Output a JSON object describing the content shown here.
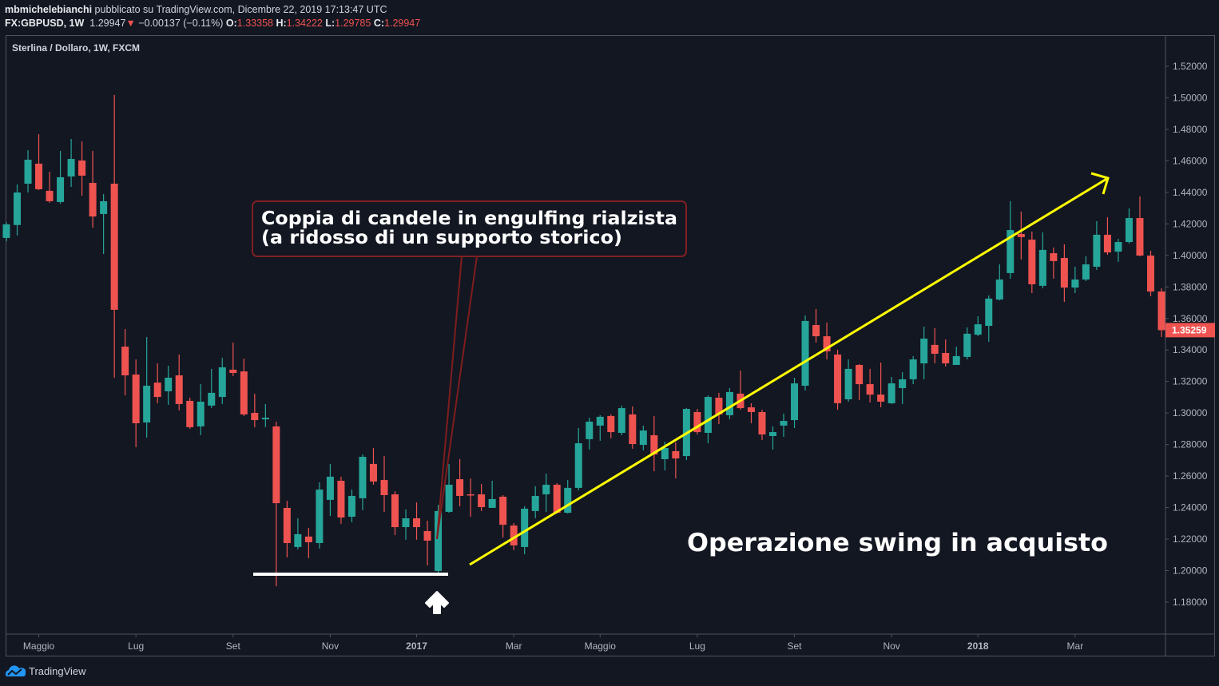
{
  "header": {
    "author": "mbmichelebianchi",
    "published_text": "pubblicato su TradingView.com, Dicembre 22, 2019 17:13:47 UTC",
    "symbol": "FX:GBPUSD, 1W",
    "last": "1.29947",
    "change_arrow": "▼",
    "change": "−0.00137 (−0.11%)",
    "open_label": "O:",
    "open": "1.33358",
    "high_label": "H:",
    "high": "1.34222",
    "low_label": "L:",
    "low": "1.29785",
    "close_label": "C:",
    "close": "1.29947"
  },
  "colors": {
    "background": "#131722",
    "up": "#26a69a",
    "down": "#ef5350",
    "trendline": "#ffff00",
    "callout_border": "#801f22"
  },
  "annotations": {
    "callout_line1": "Coppia di candele in engulfing rialzista",
    "callout_line2": "(a ridosso di un supporto storico)",
    "trade_label": "Operazione swing in acquisto"
  },
  "footer": {
    "brand": "TradingView",
    "logo_icon": "tradingview-cloud-icon"
  },
  "chart_data": {
    "type": "candlestick",
    "title": "Sterlina / Dollaro, 1W, FXCM",
    "ylim": [
      1.17,
      1.535
    ],
    "y_ticks": [
      "1.52000",
      "1.50000",
      "1.48000",
      "1.46000",
      "1.44000",
      "1.42000",
      "1.40000",
      "1.38000",
      "1.36000",
      "1.34000",
      "1.32000",
      "1.30000",
      "1.28000",
      "1.26000",
      "1.24000",
      "1.22000",
      "1.20000",
      "1.18000"
    ],
    "last_price_label": "1.35259",
    "x_ticks": [
      {
        "label": "Maggio",
        "candle": 3,
        "bold": false
      },
      {
        "label": "Lug",
        "candle": 12,
        "bold": false
      },
      {
        "label": "Set",
        "candle": 21,
        "bold": false
      },
      {
        "label": "Nov",
        "candle": 30,
        "bold": false
      },
      {
        "label": "2017",
        "candle": 38,
        "bold": true
      },
      {
        "label": "Mar",
        "candle": 47,
        "bold": false
      },
      {
        "label": "Maggio",
        "candle": 55,
        "bold": false
      },
      {
        "label": "Lug",
        "candle": 64,
        "bold": false
      },
      {
        "label": "Set",
        "candle": 73,
        "bold": false
      },
      {
        "label": "Nov",
        "candle": 82,
        "bold": false
      },
      {
        "label": "2018",
        "candle": 90,
        "bold": true
      },
      {
        "label": "Mar",
        "candle": 99,
        "bold": false
      }
    ],
    "support_level": 1.1977,
    "ohlc": [
      [
        1.4111,
        1.421,
        1.409,
        1.4197
      ],
      [
        1.4193,
        1.445,
        1.4126,
        1.4399
      ],
      [
        1.4455,
        1.4668,
        1.4399,
        1.4607
      ],
      [
        1.4582,
        1.4769,
        1.4415,
        1.442
      ],
      [
        1.441,
        1.4531,
        1.4334,
        1.4344
      ],
      [
        1.4339,
        1.4663,
        1.4328,
        1.4496
      ],
      [
        1.4501,
        1.4739,
        1.4435,
        1.4612
      ],
      [
        1.4602,
        1.4724,
        1.4379,
        1.4506
      ],
      [
        1.446,
        1.4663,
        1.4176,
        1.4247
      ],
      [
        1.4263,
        1.4389,
        1.4009,
        1.4344
      ],
      [
        1.4455,
        1.5018,
        1.3224,
        1.3655
      ],
      [
        1.3421,
        1.3533,
        1.3112,
        1.3239
      ],
      [
        1.3244,
        1.334,
        1.2783,
        1.2935
      ],
      [
        1.294,
        1.3482,
        1.2844,
        1.3173
      ],
      [
        1.3193,
        1.3315,
        1.3062,
        1.3102
      ],
      [
        1.3138,
        1.33,
        1.3052,
        1.3224
      ],
      [
        1.3239,
        1.3371,
        1.3016,
        1.3057
      ],
      [
        1.3077,
        1.3097,
        1.29,
        1.291
      ],
      [
        1.2915,
        1.3183,
        1.2859,
        1.3072
      ],
      [
        1.3047,
        1.328,
        1.3031,
        1.3128
      ],
      [
        1.3102,
        1.335,
        1.3057,
        1.329
      ],
      [
        1.3275,
        1.3447,
        1.3234,
        1.3254
      ],
      [
        1.3264,
        1.3345,
        1.298,
        1.2991
      ],
      [
        1.3001,
        1.3122,
        1.291,
        1.2955
      ],
      [
        1.296,
        1.3057,
        1.291,
        1.297
      ],
      [
        1.2915,
        1.2945,
        1.1901,
        1.2428
      ],
      [
        1.2398,
        1.2443,
        1.2084,
        1.2175
      ],
      [
        1.215,
        1.2332,
        1.2135,
        1.2231
      ],
      [
        1.2216,
        1.2271,
        1.2079,
        1.218
      ],
      [
        1.2175,
        1.256,
        1.214,
        1.2514
      ],
      [
        1.2449,
        1.2677,
        1.2347,
        1.2596
      ],
      [
        1.257,
        1.2596,
        1.2297,
        1.2337
      ],
      [
        1.2342,
        1.2514,
        1.2307,
        1.2474
      ],
      [
        1.2459,
        1.2737,
        1.2383,
        1.2722
      ],
      [
        1.2677,
        1.2778,
        1.2545,
        1.2565
      ],
      [
        1.2575,
        1.2727,
        1.2373,
        1.2479
      ],
      [
        1.2484,
        1.2504,
        1.2226,
        1.2276
      ],
      [
        1.2276,
        1.2388,
        1.2196,
        1.2332
      ],
      [
        1.2332,
        1.2433,
        1.2196,
        1.2276
      ],
      [
        1.2251,
        1.2317,
        1.2033,
        1.219
      ],
      [
        1.1998,
        1.2418,
        1.1987,
        1.2378
      ],
      [
        1.2373,
        1.2677,
        1.2367,
        1.2545
      ],
      [
        1.258,
        1.2707,
        1.2408,
        1.2474
      ],
      [
        1.2484,
        1.2585,
        1.2342,
        1.2479
      ],
      [
        1.2484,
        1.255,
        1.2378,
        1.2403
      ],
      [
        1.2398,
        1.257,
        1.2398,
        1.2454
      ],
      [
        1.2469,
        1.2479,
        1.221,
        1.2291
      ],
      [
        1.2286,
        1.2302,
        1.213,
        1.216
      ],
      [
        1.215,
        1.2408,
        1.2104,
        1.2393
      ],
      [
        1.2378,
        1.2535,
        1.2332,
        1.2474
      ],
      [
        1.2484,
        1.2616,
        1.2373,
        1.2545
      ],
      [
        1.2545,
        1.2555,
        1.2362,
        1.2367
      ],
      [
        1.2367,
        1.2575,
        1.2362,
        1.2525
      ],
      [
        1.2525,
        1.2905,
        1.2509,
        1.2808
      ],
      [
        1.2834,
        1.297,
        1.2768,
        1.2945
      ],
      [
        1.292,
        1.2986,
        1.2824,
        1.2976
      ],
      [
        1.2981,
        1.2991,
        1.2839,
        1.2879
      ],
      [
        1.2874,
        1.3047,
        1.2859,
        1.3031
      ],
      [
        1.2991,
        1.3042,
        1.2773,
        1.2803
      ],
      [
        1.2798,
        1.292,
        1.2763,
        1.2889
      ],
      [
        1.2859,
        1.2981,
        1.2631,
        1.2737
      ],
      [
        1.2707,
        1.2818,
        1.2636,
        1.2778
      ],
      [
        1.2758,
        1.2813,
        1.2585,
        1.2712
      ],
      [
        1.2727,
        1.3031,
        1.2702,
        1.3026
      ],
      [
        1.3006,
        1.3026,
        1.2864,
        1.2879
      ],
      [
        1.2874,
        1.3112,
        1.2808,
        1.3102
      ],
      [
        1.3097,
        1.3128,
        1.293,
        1.2991
      ],
      [
        1.2986,
        1.3158,
        1.296,
        1.3133
      ],
      [
        1.3123,
        1.327,
        1.3021,
        1.3031
      ],
      [
        1.3036,
        1.3062,
        1.2935,
        1.3006
      ],
      [
        1.3006,
        1.3021,
        1.2829,
        1.2864
      ],
      [
        1.2854,
        1.2915,
        1.2768,
        1.2879
      ],
      [
        1.292,
        1.2996,
        1.2849,
        1.295
      ],
      [
        1.2955,
        1.3224,
        1.2905,
        1.3188
      ],
      [
        1.3173,
        1.3619,
        1.3143,
        1.3584
      ],
      [
        1.3558,
        1.366,
        1.3447,
        1.3487
      ],
      [
        1.3487,
        1.3574,
        1.334,
        1.3391
      ],
      [
        1.3371,
        1.3401,
        1.3021,
        1.3062
      ],
      [
        1.3087,
        1.334,
        1.3072,
        1.328
      ],
      [
        1.3305,
        1.331,
        1.3082,
        1.3183
      ],
      [
        1.3183,
        1.328,
        1.3067,
        1.3117
      ],
      [
        1.3117,
        1.332,
        1.3036,
        1.3072
      ],
      [
        1.3062,
        1.3229,
        1.3057,
        1.3188
      ],
      [
        1.3158,
        1.3259,
        1.3057,
        1.3214
      ],
      [
        1.3214,
        1.3361,
        1.3183,
        1.334
      ],
      [
        1.3315,
        1.3548,
        1.3214,
        1.3472
      ],
      [
        1.3432,
        1.3538,
        1.3315,
        1.3376
      ],
      [
        1.3381,
        1.3467,
        1.3295,
        1.3315
      ],
      [
        1.3305,
        1.3421,
        1.3305,
        1.3361
      ],
      [
        1.3356,
        1.3543,
        1.334,
        1.3503
      ],
      [
        1.3497,
        1.3614,
        1.3487,
        1.3563
      ],
      [
        1.3553,
        1.3746,
        1.3452,
        1.3726
      ],
      [
        1.372,
        1.3943,
        1.3715,
        1.3847
      ],
      [
        1.3888,
        1.4344,
        1.3852,
        1.4161
      ],
      [
        1.4136,
        1.4278,
        1.3974,
        1.4116
      ],
      [
        1.41,
        1.4151,
        1.3761,
        1.3817
      ],
      [
        1.3807,
        1.4146,
        1.3791,
        1.4035
      ],
      [
        1.4014,
        1.405,
        1.3852,
        1.3964
      ],
      [
        1.3984,
        1.407,
        1.3705,
        1.3796
      ],
      [
        1.3796,
        1.3928,
        1.3761,
        1.3847
      ],
      [
        1.3847,
        1.3994,
        1.3837,
        1.3943
      ],
      [
        1.3928,
        1.4217,
        1.3908,
        1.4131
      ],
      [
        1.4131,
        1.4242,
        1.4004,
        1.4019
      ],
      [
        1.4024,
        1.4105,
        1.3959,
        1.4085
      ],
      [
        1.4085,
        1.4298,
        1.4075,
        1.4237
      ],
      [
        1.4237,
        1.4374,
        1.3994,
        1.3999
      ],
      [
        1.3999,
        1.403,
        1.3741,
        1.3771
      ],
      [
        1.3771,
        1.3791,
        1.3482,
        1.35259
      ]
    ]
  }
}
